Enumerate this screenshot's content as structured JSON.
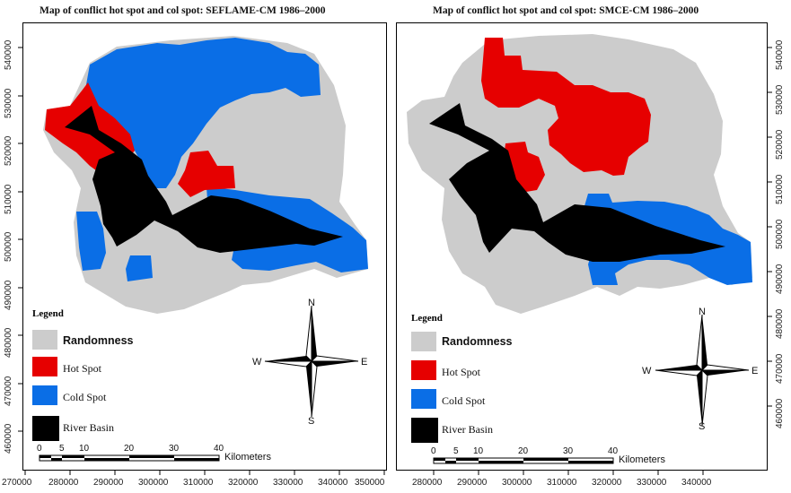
{
  "panels": [
    {
      "title": "Map of conflict hot spot and col spot: SEFLAME-CM 1986–2000",
      "legend": {
        "title": "Legend",
        "items": [
          {
            "label": "Randomness",
            "color": "#cccccc"
          },
          {
            "label": "Hot Spot",
            "color": "#e60000"
          },
          {
            "label": "Cold Spot",
            "color": "#0a6ee6"
          },
          {
            "label": "River Basin",
            "color": "#000000"
          }
        ]
      },
      "compass": {
        "n": "N",
        "s": "S",
        "e": "E",
        "w": "W"
      },
      "scale": {
        "ticks": [
          "0",
          "5",
          "10",
          "20",
          "30",
          "40"
        ],
        "unit": "Kilometers"
      },
      "y_ticks": [
        "540000",
        "530000",
        "520000",
        "510000",
        "500000",
        "490000",
        "480000",
        "470000",
        "460000"
      ],
      "x_ticks": [
        "270000",
        "280000",
        "290000",
        "300000",
        "310000",
        "320000",
        "330000",
        "340000",
        "350000"
      ]
    },
    {
      "title": "Map of conflict hot spot and col spot: SMCE-CM 1986–2000",
      "legend": {
        "title": "Legend",
        "items": [
          {
            "label": "Randomness",
            "color": "#cccccc"
          },
          {
            "label": "Hot Spot",
            "color": "#e60000"
          },
          {
            "label": "Cold Spot",
            "color": "#0a6ee6"
          },
          {
            "label": "River Basin",
            "color": "#000000"
          }
        ]
      },
      "compass": {
        "n": "N",
        "s": "S",
        "e": "E",
        "w": "W"
      },
      "scale": {
        "ticks": [
          "0",
          "5",
          "10",
          "20",
          "30",
          "40"
        ],
        "unit": "Kilometers"
      },
      "y_ticks": [
        "540000",
        "530000",
        "520000",
        "510000",
        "500000",
        "490000",
        "480000",
        "470000",
        "460000"
      ],
      "x_ticks": [
        "280000",
        "290000",
        "300000",
        "310000",
        "320000",
        "330000",
        "340000"
      ]
    }
  ]
}
